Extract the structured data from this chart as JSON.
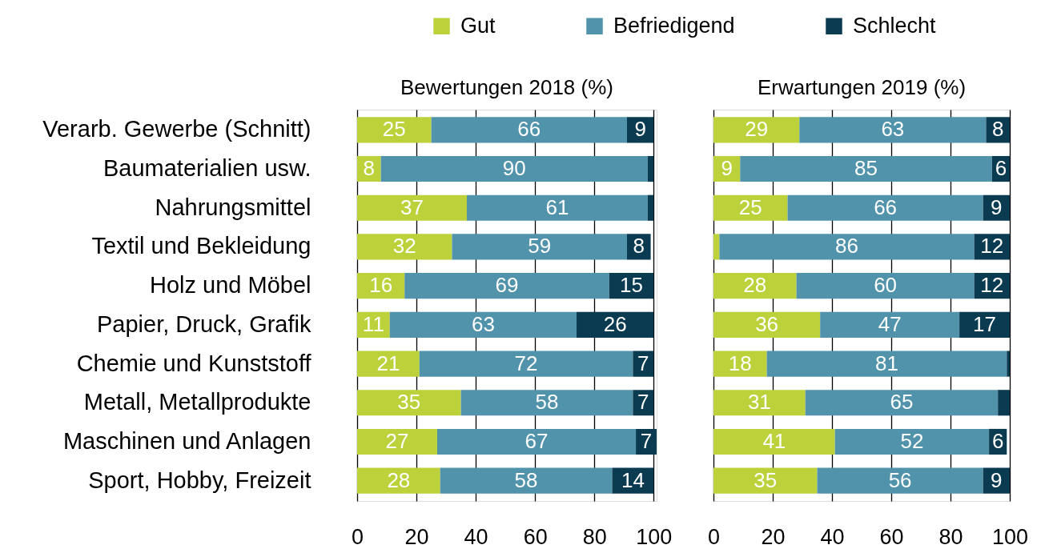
{
  "chart_data": [
    {
      "type": "bar",
      "orientation": "horizontal",
      "stacked": true,
      "title": "Bewertungen 2018 (%)",
      "categories": [
        "Verarb. Gewerbe (Schnitt)",
        "Baumaterialien usw.",
        "Nahrungsmittel",
        "Textil und Bekleidung",
        "Holz und Möbel",
        "Papier, Druck, Grafik",
        "Chemie und Kunststoff",
        "Metall, Metallprodukte",
        "Maschinen und Anlagen",
        "Sport, Hobby, Freizeit"
      ],
      "series": [
        {
          "name": "Gut",
          "color": "#bcd13a",
          "values": [
            25,
            8,
            37,
            32,
            16,
            11,
            21,
            35,
            27,
            28
          ],
          "value_labels": [
            "25",
            "8",
            "37",
            "32",
            "16",
            "11",
            "21",
            "35",
            "27",
            "28"
          ]
        },
        {
          "name": "Befriedigend",
          "color": "#5193ab",
          "values": [
            66,
            90,
            61,
            59,
            69,
            63,
            72,
            58,
            67,
            58
          ],
          "value_labels": [
            "66",
            "90",
            "61",
            "59",
            "69",
            "63",
            "72",
            "58",
            "67",
            "58"
          ]
        },
        {
          "name": "Schlecht",
          "color": "#0a3b51",
          "values": [
            9,
            2,
            2,
            8,
            15,
            26,
            7,
            7,
            7,
            14
          ],
          "value_labels": [
            "9",
            null,
            null,
            "8",
            "15",
            "26",
            "7",
            "7",
            "7",
            "14"
          ]
        }
      ],
      "xlim": [
        0,
        101
      ],
      "xticks": [
        0,
        20,
        40,
        60,
        80,
        100
      ],
      "grid": "x",
      "legend": "top"
    },
    {
      "type": "bar",
      "orientation": "horizontal",
      "stacked": true,
      "title": "Erwartungen 2019 (%)",
      "categories": [
        null,
        null,
        null,
        null,
        null,
        null,
        null,
        null,
        null,
        null
      ],
      "series": [
        {
          "name": "Gut",
          "color": "#bcd13a",
          "values": [
            29,
            9,
            25,
            2,
            28,
            36,
            18,
            31,
            41,
            35
          ],
          "value_labels": [
            "29",
            "9",
            "25",
            null,
            "28",
            "36",
            "18",
            "31",
            "41",
            "35"
          ]
        },
        {
          "name": "Befriedigend",
          "color": "#5193ab",
          "values": [
            63,
            85,
            66,
            86,
            60,
            47,
            81,
            65,
            52,
            56
          ],
          "value_labels": [
            "63",
            "85",
            "66",
            "86",
            "60",
            "47",
            "81",
            "65",
            "52",
            "56"
          ]
        },
        {
          "name": "Schlecht",
          "color": "#0a3b51",
          "values": [
            8,
            6,
            9,
            12,
            12,
            17,
            1,
            4,
            6,
            9
          ],
          "value_labels": [
            "8",
            "6",
            "9",
            "12",
            "12",
            "17",
            null,
            null,
            "6",
            "9"
          ]
        }
      ],
      "xlim": [
        0,
        100
      ],
      "xticks": [
        0,
        20,
        40,
        60,
        80,
        100
      ],
      "grid": "x"
    }
  ]
}
